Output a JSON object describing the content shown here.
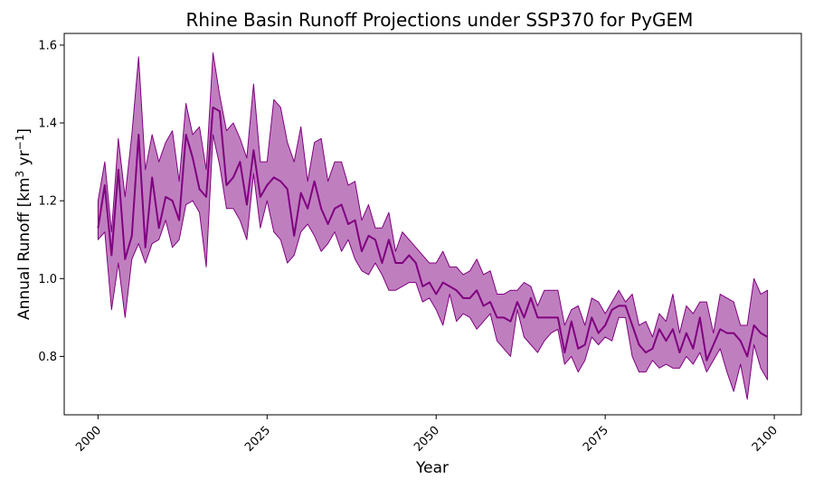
{
  "chart_data": {
    "type": "line",
    "title": "Rhine Basin Runoff Projections under SSP370 for PyGEM",
    "xlabel": "Year",
    "ylabel": {
      "base": "Annual Runoff [km",
      "sup1": "3",
      "mid": " yr",
      "sup2": "−1",
      "end": "]"
    },
    "xlim": [
      1995,
      2104
    ],
    "ylim": [
      0.65,
      1.63
    ],
    "xticks": [
      2000,
      2025,
      2050,
      2075,
      2100
    ],
    "yticks": [
      0.8,
      1.0,
      1.2,
      1.4,
      1.6
    ],
    "ytick_labels": [
      "0.8",
      "1.0",
      "1.2",
      "1.4",
      "1.6"
    ],
    "grid": false,
    "colors": {
      "line": "#800080",
      "band": "#800080"
    },
    "x": [
      2000,
      2001,
      2002,
      2003,
      2004,
      2005,
      2006,
      2007,
      2008,
      2009,
      2010,
      2011,
      2012,
      2013,
      2014,
      2015,
      2016,
      2017,
      2018,
      2019,
      2020,
      2021,
      2022,
      2023,
      2024,
      2025,
      2026,
      2027,
      2028,
      2029,
      2030,
      2031,
      2032,
      2033,
      2034,
      2035,
      2036,
      2037,
      2038,
      2039,
      2040,
      2041,
      2042,
      2043,
      2044,
      2045,
      2046,
      2047,
      2048,
      2049,
      2050,
      2051,
      2052,
      2053,
      2054,
      2055,
      2056,
      2057,
      2058,
      2059,
      2060,
      2061,
      2062,
      2063,
      2064,
      2065,
      2066,
      2067,
      2068,
      2069,
      2070,
      2071,
      2072,
      2073,
      2074,
      2075,
      2076,
      2077,
      2078,
      2079,
      2080,
      2081,
      2082,
      2083,
      2084,
      2085,
      2086,
      2087,
      2088,
      2089,
      2090,
      2091,
      2092,
      2093,
      2094,
      2095,
      2096,
      2097,
      2098,
      2099
    ],
    "mean": [
      1.13,
      1.24,
      1.06,
      1.28,
      1.05,
      1.11,
      1.37,
      1.08,
      1.26,
      1.13,
      1.21,
      1.2,
      1.15,
      1.37,
      1.31,
      1.23,
      1.21,
      1.44,
      1.43,
      1.24,
      1.26,
      1.3,
      1.19,
      1.33,
      1.21,
      1.24,
      1.26,
      1.25,
      1.23,
      1.11,
      1.22,
      1.18,
      1.25,
      1.18,
      1.14,
      1.18,
      1.19,
      1.14,
      1.15,
      1.07,
      1.11,
      1.1,
      1.04,
      1.1,
      1.04,
      1.04,
      1.06,
      1.04,
      0.98,
      0.99,
      0.96,
      0.99,
      0.98,
      0.97,
      0.95,
      0.95,
      0.97,
      0.93,
      0.94,
      0.9,
      0.9,
      0.89,
      0.94,
      0.9,
      0.95,
      0.9,
      0.9,
      0.9,
      0.9,
      0.81,
      0.89,
      0.82,
      0.83,
      0.9,
      0.86,
      0.88,
      0.92,
      0.93,
      0.93,
      0.88,
      0.83,
      0.81,
      0.82,
      0.87,
      0.84,
      0.87,
      0.81,
      0.86,
      0.82,
      0.9,
      0.79,
      0.83,
      0.87,
      0.86,
      0.86,
      0.84,
      0.8,
      0.88,
      0.86,
      0.85
    ],
    "upper": [
      1.2,
      1.3,
      1.12,
      1.36,
      1.21,
      1.37,
      1.57,
      1.28,
      1.37,
      1.3,
      1.35,
      1.38,
      1.25,
      1.45,
      1.37,
      1.39,
      1.28,
      1.58,
      1.47,
      1.38,
      1.4,
      1.36,
      1.31,
      1.5,
      1.3,
      1.3,
      1.46,
      1.44,
      1.35,
      1.3,
      1.39,
      1.25,
      1.35,
      1.36,
      1.25,
      1.3,
      1.3,
      1.24,
      1.25,
      1.15,
      1.19,
      1.13,
      1.13,
      1.17,
      1.07,
      1.12,
      1.1,
      1.08,
      1.06,
      1.04,
      1.04,
      1.07,
      1.03,
      1.03,
      1.01,
      1.02,
      1.05,
      1.01,
      1.02,
      0.96,
      0.96,
      0.97,
      0.97,
      0.99,
      0.98,
      0.93,
      0.97,
      0.97,
      0.97,
      0.88,
      0.92,
      0.93,
      0.88,
      0.95,
      0.94,
      0.91,
      0.94,
      0.97,
      0.94,
      0.96,
      0.88,
      0.89,
      0.85,
      0.91,
      0.89,
      0.96,
      0.86,
      0.93,
      0.91,
      0.94,
      0.94,
      0.86,
      0.96,
      0.95,
      0.94,
      0.88,
      0.88,
      1.0,
      0.96,
      0.97
    ],
    "lower": [
      1.1,
      1.12,
      0.92,
      1.04,
      0.9,
      1.05,
      1.09,
      1.04,
      1.09,
      1.1,
      1.15,
      1.08,
      1.1,
      1.19,
      1.2,
      1.17,
      1.03,
      1.37,
      1.29,
      1.18,
      1.18,
      1.15,
      1.1,
      1.27,
      1.13,
      1.2,
      1.12,
      1.1,
      1.04,
      1.06,
      1.12,
      1.14,
      1.11,
      1.07,
      1.09,
      1.12,
      1.07,
      1.1,
      1.05,
      1.02,
      1.01,
      1.04,
      1.01,
      0.97,
      0.97,
      0.98,
      0.99,
      0.99,
      0.94,
      0.95,
      0.92,
      0.88,
      0.96,
      0.89,
      0.91,
      0.9,
      0.87,
      0.89,
      0.91,
      0.84,
      0.82,
      0.8,
      0.92,
      0.85,
      0.83,
      0.81,
      0.84,
      0.86,
      0.87,
      0.78,
      0.8,
      0.76,
      0.79,
      0.85,
      0.83,
      0.85,
      0.84,
      0.9,
      0.9,
      0.8,
      0.76,
      0.76,
      0.79,
      0.77,
      0.78,
      0.77,
      0.77,
      0.8,
      0.78,
      0.81,
      0.76,
      0.79,
      0.82,
      0.76,
      0.71,
      0.78,
      0.69,
      0.83,
      0.77,
      0.74
    ]
  }
}
